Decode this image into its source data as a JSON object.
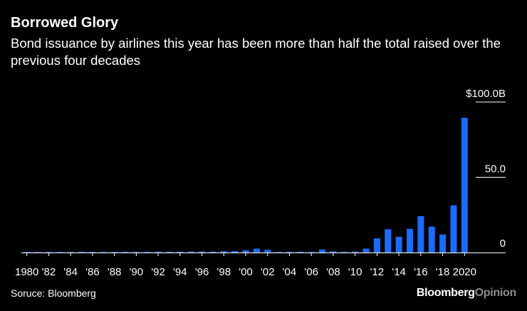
{
  "header": {
    "title": "Borrowed Glory",
    "subtitle": "Bond issuance by airlines this year has been more than half the total raised over the previous four decades"
  },
  "footer": {
    "source": "Soruce: Bloomberg",
    "brand_part1": "Bloomberg",
    "brand_part2": "Opinion"
  },
  "colors": {
    "background": "#000000",
    "bar": "#1a6cff",
    "text": "#ffffff",
    "brand_secondary": "#8c8c8c"
  },
  "chart_data": {
    "type": "bar",
    "title": "Borrowed Glory",
    "xlabel": "",
    "ylabel": "",
    "unit": "$ billions",
    "ylim": [
      0,
      100
    ],
    "y_ticks": [
      {
        "value": 100,
        "label": "$100.0B"
      },
      {
        "value": 50,
        "label": "50.0"
      },
      {
        "value": 0,
        "label": "0"
      }
    ],
    "categories": [
      1980,
      1981,
      1982,
      1983,
      1984,
      1985,
      1986,
      1987,
      1988,
      1989,
      1990,
      1991,
      1992,
      1993,
      1994,
      1995,
      1996,
      1997,
      1998,
      1999,
      2000,
      2001,
      2002,
      2003,
      2004,
      2005,
      2006,
      2007,
      2008,
      2009,
      2010,
      2011,
      2012,
      2013,
      2014,
      2015,
      2016,
      2017,
      2018,
      2019,
      2020
    ],
    "x_tick_labels": [
      {
        "year": 1980,
        "label": "1980"
      },
      {
        "year": 1982,
        "label": "'82"
      },
      {
        "year": 1984,
        "label": "'84"
      },
      {
        "year": 1986,
        "label": "'86"
      },
      {
        "year": 1988,
        "label": "'88"
      },
      {
        "year": 1990,
        "label": "'90"
      },
      {
        "year": 1992,
        "label": "'92"
      },
      {
        "year": 1994,
        "label": "'94"
      },
      {
        "year": 1996,
        "label": "'96"
      },
      {
        "year": 1998,
        "label": "'98"
      },
      {
        "year": 2000,
        "label": "'00"
      },
      {
        "year": 2002,
        "label": "'02"
      },
      {
        "year": 2004,
        "label": "'04"
      },
      {
        "year": 2006,
        "label": "'06"
      },
      {
        "year": 2008,
        "label": "'08"
      },
      {
        "year": 2010,
        "label": "'10"
      },
      {
        "year": 2012,
        "label": "'12"
      },
      {
        "year": 2014,
        "label": "'14"
      },
      {
        "year": 2016,
        "label": "'16"
      },
      {
        "year": 2018,
        "label": "'18"
      },
      {
        "year": 2020,
        "label": "2020"
      }
    ],
    "series": [
      {
        "name": "Airline bond issuance",
        "values": [
          0.4,
          0.2,
          0.2,
          0.3,
          0.2,
          0.5,
          0.4,
          0.3,
          0.3,
          0.5,
          0.4,
          0.4,
          0.6,
          0.5,
          0.5,
          0.6,
          0.7,
          0.6,
          0.9,
          1.0,
          1.5,
          2.6,
          1.8,
          0.3,
          0.5,
          0.5,
          0.4,
          2.0,
          0.8,
          0.4,
          0.6,
          2.6,
          9.4,
          15.5,
          10.5,
          15.7,
          24.2,
          17.2,
          12.0,
          31.3,
          89.5
        ]
      }
    ]
  }
}
